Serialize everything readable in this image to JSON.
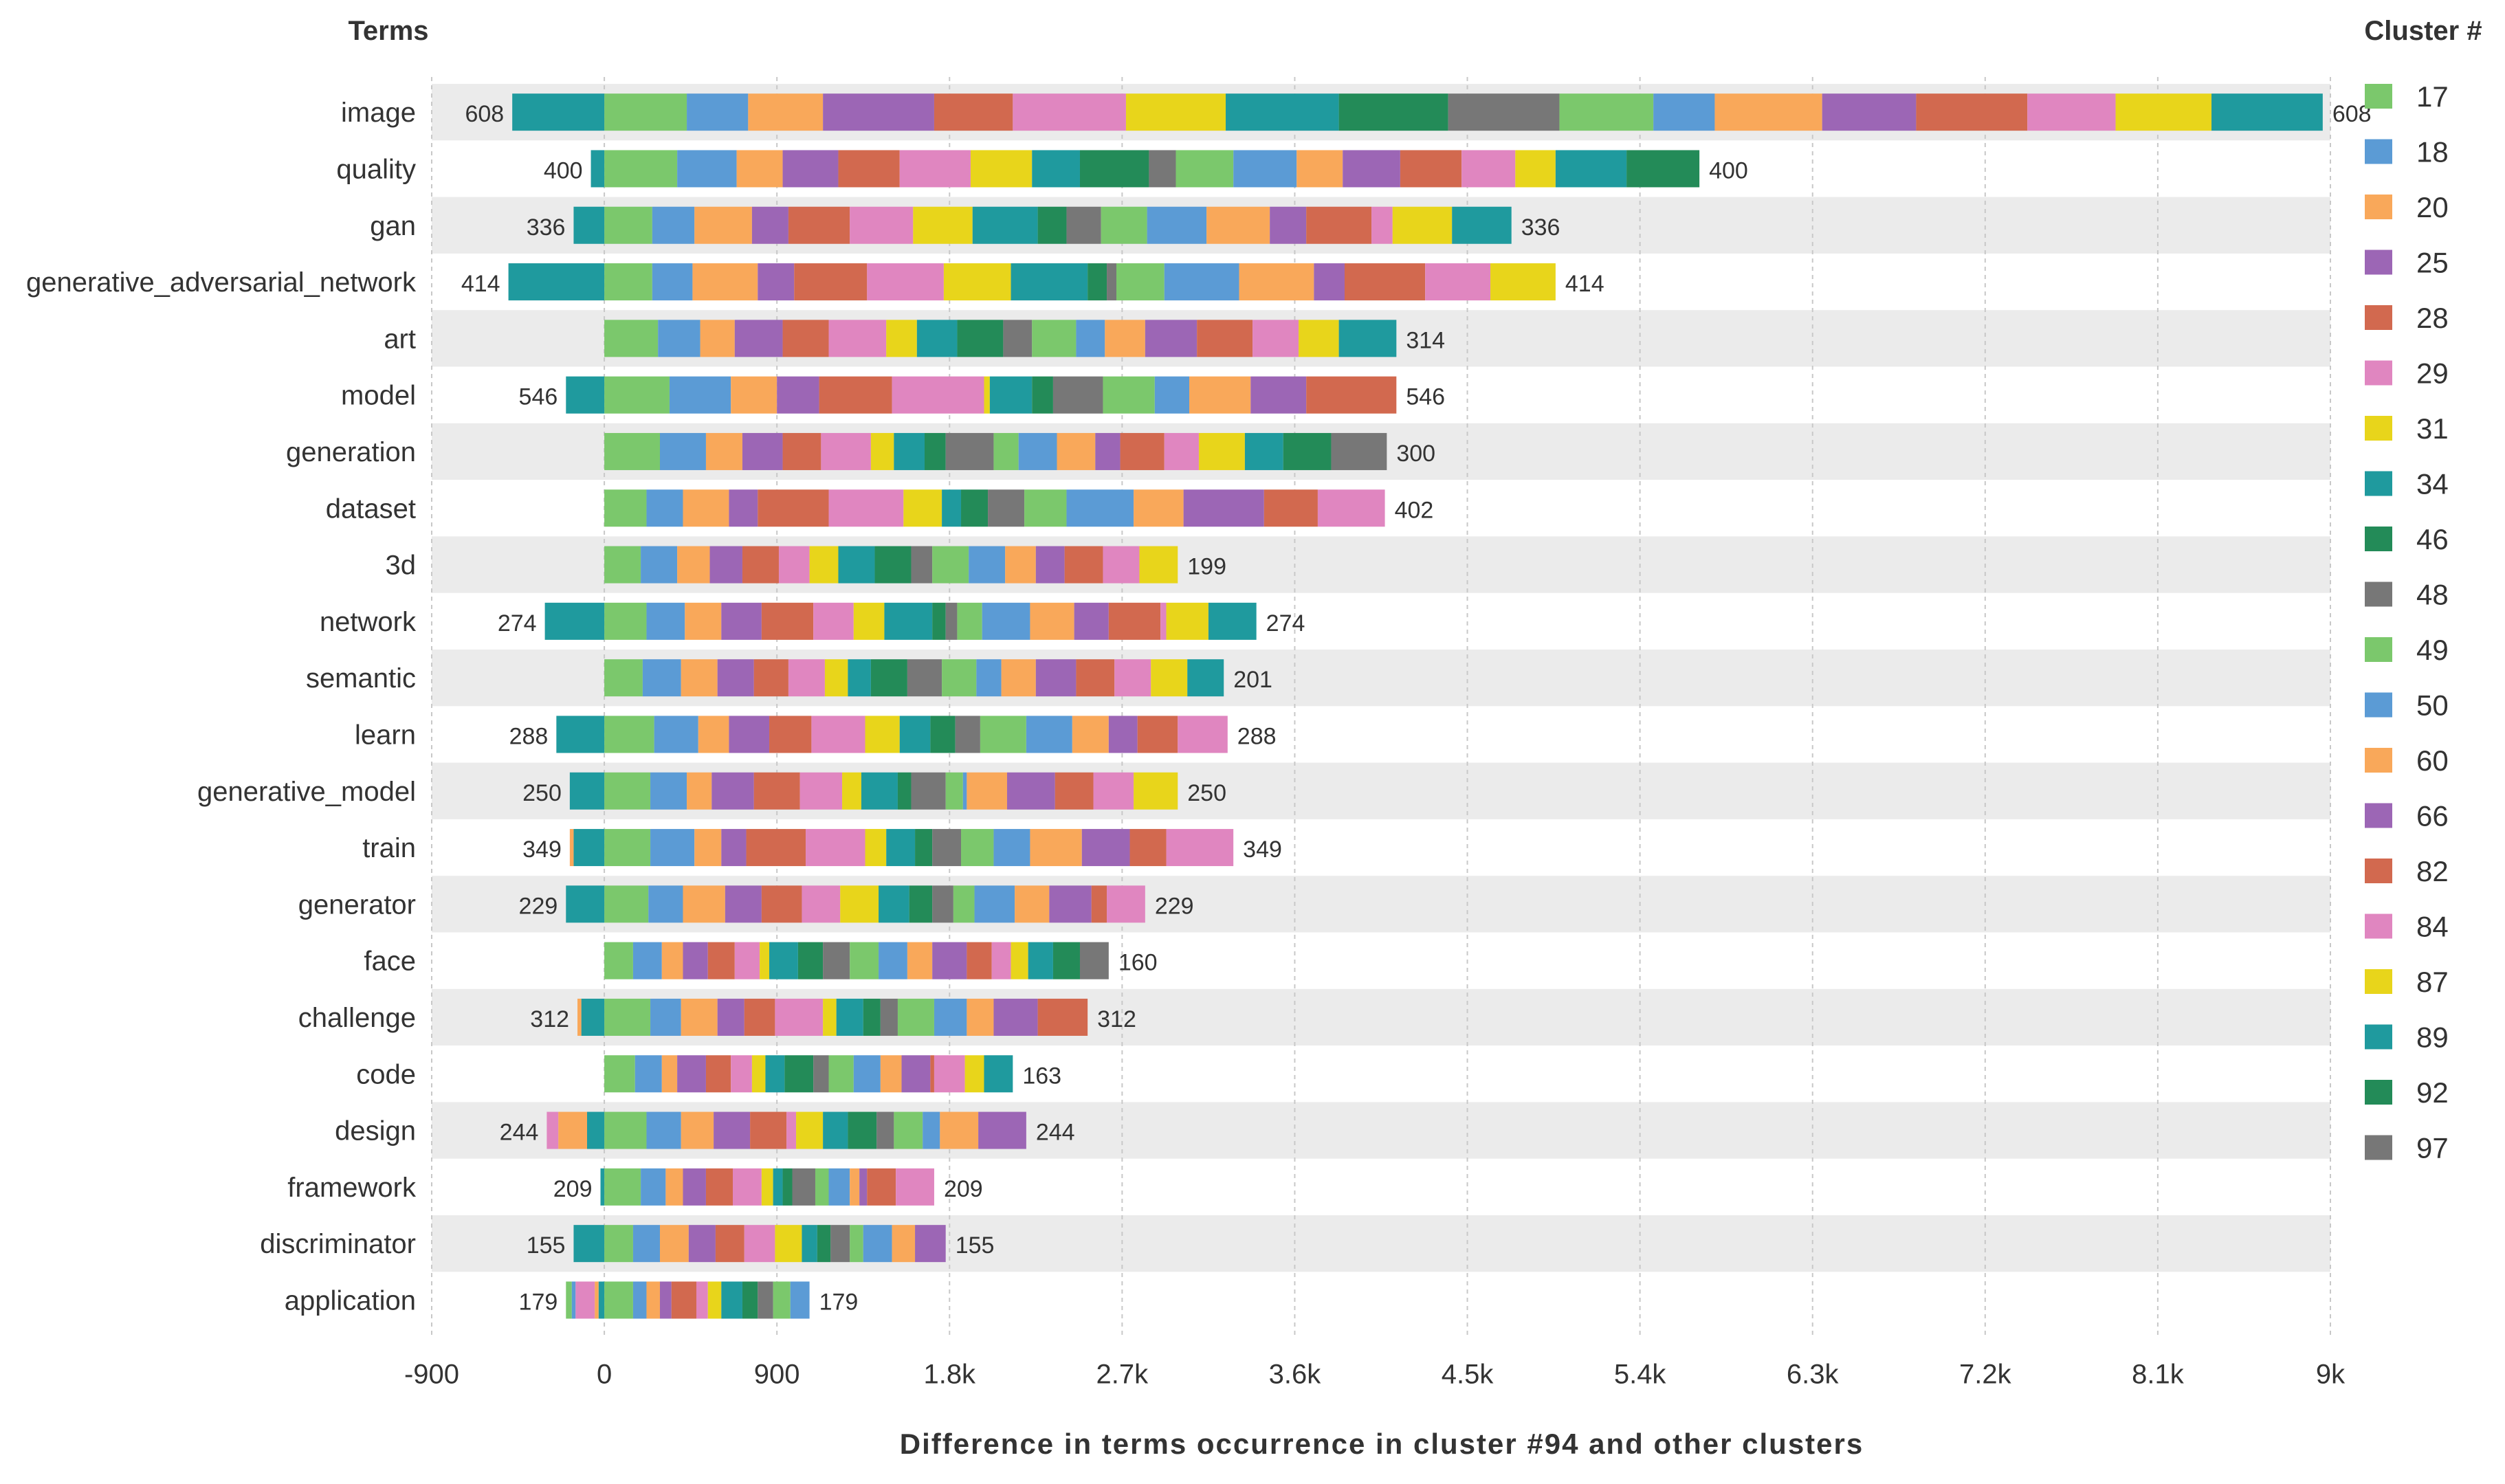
{
  "chart_data": {
    "type": "bar",
    "stacked": true,
    "orientation": "horizontal",
    "terms_header": "Terms",
    "legend_title": "Cluster #",
    "xlabel": "Difference in terms occurrence in cluster #94 and other clusters",
    "xlim": [
      -900,
      9000
    ],
    "x_ticks": [
      {
        "value": -900,
        "label": "-900"
      },
      {
        "value": 0,
        "label": "0"
      },
      {
        "value": 900,
        "label": "900"
      },
      {
        "value": 1800,
        "label": "1.8k"
      },
      {
        "value": 2700,
        "label": "2.7k"
      },
      {
        "value": 3600,
        "label": "3.6k"
      },
      {
        "value": 4500,
        "label": "4.5k"
      },
      {
        "value": 5400,
        "label": "5.4k"
      },
      {
        "value": 6300,
        "label": "6.3k"
      },
      {
        "value": 7200,
        "label": "7.2k"
      },
      {
        "value": 8100,
        "label": "8.1k"
      },
      {
        "value": 9000,
        "label": "9k"
      }
    ],
    "grid": true,
    "legend_position": "right",
    "clusters": [
      {
        "id": "17",
        "color": "#7bc86c"
      },
      {
        "id": "18",
        "color": "#5b9bd5"
      },
      {
        "id": "20",
        "color": "#f9a85a"
      },
      {
        "id": "25",
        "color": "#9c66b5"
      },
      {
        "id": "28",
        "color": "#d2694f"
      },
      {
        "id": "29",
        "color": "#e086c0"
      },
      {
        "id": "31",
        "color": "#e8d51b"
      },
      {
        "id": "34",
        "color": "#1f9a9e"
      },
      {
        "id": "46",
        "color": "#238b58"
      },
      {
        "id": "48",
        "color": "#777777"
      },
      {
        "id": "49",
        "color": "#7bc86c"
      },
      {
        "id": "50",
        "color": "#5b9bd5"
      },
      {
        "id": "60",
        "color": "#f9a85a"
      },
      {
        "id": "66",
        "color": "#9c66b5"
      },
      {
        "id": "82",
        "color": "#d2694f"
      },
      {
        "id": "84",
        "color": "#e086c0"
      },
      {
        "id": "87",
        "color": "#e8d51b"
      },
      {
        "id": "89",
        "color": "#1f9a9e"
      },
      {
        "id": "92",
        "color": "#238b58"
      },
      {
        "id": "97",
        "color": "#777777"
      }
    ],
    "terms": [
      {
        "term": "image",
        "label": "608",
        "neg": [
          480,
          0,
          0,
          0,
          0,
          0,
          0,
          0,
          0,
          0,
          0,
          0,
          0,
          0,
          0,
          0,
          0,
          0,
          0,
          0
        ],
        "pos": [
          430,
          320,
          390,
          580,
          410,
          590,
          520,
          590,
          570,
          580,
          490,
          320,
          560,
          490,
          580,
          460,
          500,
          580
        ],
        "neg_clusters": [
          "34"
        ]
      },
      {
        "term": "quality",
        "label": "400",
        "pos": [
          380,
          310,
          240,
          290,
          320,
          370,
          320,
          250,
          360,
          140,
          300,
          330,
          240,
          300,
          320,
          280,
          210,
          370,
          380
        ],
        "neg": [
          70
        ]
      },
      {
        "term": "gan",
        "label": "336",
        "pos": [
          250,
          220,
          300,
          190,
          320,
          330,
          310,
          340,
          150,
          180,
          240,
          310,
          330,
          190,
          340,
          110,
          310,
          310
        ],
        "neg": [
          160
        ]
      },
      {
        "term": "generative_adversarial_network",
        "label": "414",
        "pos": [
          250,
          210,
          340,
          190,
          380,
          400,
          350,
          400,
          100,
          50,
          250,
          390,
          390,
          160,
          420,
          340,
          340
        ],
        "neg": [
          500
        ]
      },
      {
        "term": "art",
        "label": "314",
        "pos": [
          280,
          220,
          180,
          250,
          240,
          300,
          160,
          210,
          240,
          150,
          230,
          150,
          210,
          270,
          290,
          240,
          210,
          300
        ]
      },
      {
        "term": "model",
        "label": "546",
        "pos": [
          340,
          320,
          240,
          220,
          380,
          480,
          30,
          220,
          110,
          260,
          270,
          180,
          320,
          290,
          470
        ],
        "neg": [
          200
        ]
      },
      {
        "term": "generation",
        "label": "300",
        "pos": [
          290,
          240,
          190,
          210,
          200,
          260,
          120,
          160,
          110,
          250,
          130,
          200,
          200,
          130,
          230,
          180,
          240,
          200,
          250,
          290
        ]
      },
      {
        "term": "dataset",
        "label": "402",
        "pos": [
          220,
          190,
          240,
          150,
          370,
          390,
          200,
          100,
          140,
          190,
          220,
          350,
          260,
          420,
          280,
          350
        ]
      },
      {
        "term": "3d",
        "label": "199",
        "pos": [
          190,
          190,
          170,
          170,
          190,
          160,
          150,
          190,
          190,
          110,
          190,
          190,
          160,
          150,
          200,
          190,
          200
        ]
      },
      {
        "term": "network",
        "label": "274",
        "pos": [
          220,
          200,
          190,
          210,
          270,
          210,
          160,
          250,
          70,
          60,
          130,
          250,
          230,
          180,
          270,
          30,
          220,
          250
        ],
        "neg": [
          310
        ]
      },
      {
        "term": "semantic",
        "label": "201",
        "pos": [
          200,
          200,
          190,
          190,
          180,
          190,
          120,
          120,
          190,
          180,
          180,
          130,
          180,
          210,
          200,
          190,
          190,
          190
        ]
      },
      {
        "term": "learn",
        "label": "288",
        "pos": [
          260,
          230,
          160,
          210,
          220,
          280,
          180,
          160,
          130,
          130,
          240,
          240,
          190,
          150,
          210,
          260
        ],
        "neg": [
          250
        ]
      },
      {
        "term": "generative_model",
        "label": "250",
        "pos": [
          240,
          190,
          130,
          220,
          240,
          220,
          100,
          190,
          70,
          180,
          90,
          20,
          210,
          250,
          200,
          210,
          230
        ],
        "neg": [
          180
        ]
      },
      {
        "term": "train",
        "label": "349",
        "pos": [
          240,
          230,
          140,
          130,
          310,
          310,
          110,
          150,
          90,
          150,
          170,
          190,
          270,
          250,
          190,
          350
        ],
        "neg": [
          160,
          20
        ]
      },
      {
        "term": "generator",
        "label": "229",
        "pos": [
          230,
          180,
          220,
          190,
          210,
          200,
          200,
          160,
          120,
          110,
          110,
          210,
          180,
          220,
          80,
          200
        ],
        "neg": [
          200
        ]
      },
      {
        "term": "face",
        "label": "160",
        "pos": [
          150,
          150,
          110,
          130,
          140,
          130,
          50,
          150,
          130,
          140,
          150,
          150,
          130,
          180,
          130,
          100,
          90,
          130,
          140,
          150
        ]
      },
      {
        "term": "challenge",
        "label": "312",
        "pos": [
          240,
          160,
          190,
          140,
          160,
          250,
          70,
          140,
          90,
          90,
          190,
          170,
          140,
          230,
          260
        ],
        "neg": [
          120,
          20
        ]
      },
      {
        "term": "code",
        "label": "163",
        "pos": [
          160,
          140,
          80,
          150,
          130,
          110,
          70,
          100,
          150,
          80,
          130,
          140,
          110,
          150,
          20,
          160,
          100,
          150
        ]
      },
      {
        "term": "design",
        "label": "244",
        "pos": [
          220,
          180,
          170,
          190,
          190,
          50,
          140,
          130,
          150,
          90,
          150,
          90,
          200,
          250
        ],
        "neg": [
          90,
          150,
          60
        ]
      },
      {
        "term": "framework",
        "label": "209",
        "pos": [
          190,
          130,
          90,
          120,
          140,
          150,
          60,
          50,
          50,
          120,
          70,
          110,
          50,
          40,
          150,
          200
        ],
        "neg": [
          20
        ]
      },
      {
        "term": "discriminator",
        "label": "155",
        "pos": [
          150,
          140,
          150,
          140,
          150,
          160,
          140,
          80,
          70,
          100,
          70,
          150,
          120,
          160
        ],
        "neg": [
          160
        ]
      },
      {
        "term": "application",
        "label": "179",
        "pos": [
          150,
          70,
          70,
          60,
          130,
          60,
          70,
          110,
          80,
          80,
          90,
          100
        ],
        "neg": [
          30,
          20,
          100,
          20,
          30
        ]
      }
    ]
  }
}
